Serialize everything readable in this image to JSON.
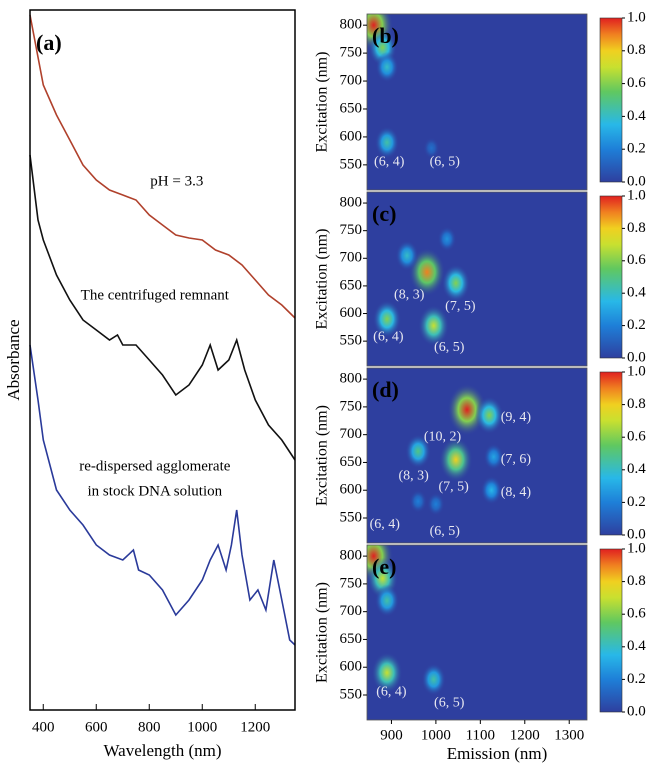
{
  "chart_data": [
    {
      "type": "line",
      "panel_label": "(a)",
      "xlabel": "Wavelength (nm)",
      "ylabel": "Absorbance",
      "xlim": [
        350,
        1350
      ],
      "xticks": [
        400,
        600,
        800,
        1000,
        1200
      ],
      "ylim": [
        0,
        700
      ],
      "series": [
        {
          "color": "#b0412c",
          "x": [
            350,
            400,
            450,
            500,
            550,
            600,
            650,
            700,
            750,
            800,
            850,
            900,
            950,
            1000,
            1050,
            1100,
            1150,
            1200,
            1250,
            1300,
            1350
          ],
          "values": [
            695,
            625,
            595,
            570,
            545,
            530,
            520,
            515,
            510,
            495,
            485,
            475,
            472,
            470,
            460,
            455,
            445,
            430,
            415,
            405,
            392
          ]
        },
        {
          "color": "#111111",
          "x": [
            350,
            380,
            400,
            450,
            500,
            550,
            600,
            650,
            680,
            700,
            750,
            800,
            850,
            900,
            950,
            1000,
            1030,
            1060,
            1100,
            1130,
            1160,
            1200,
            1250,
            1300,
            1350
          ],
          "values": [
            555,
            490,
            470,
            435,
            410,
            390,
            380,
            370,
            375,
            365,
            365,
            350,
            335,
            315,
            325,
            345,
            365,
            340,
            350,
            370,
            340,
            310,
            285,
            270,
            250
          ]
        },
        {
          "color": "#2a3a9a",
          "x": [
            350,
            380,
            400,
            450,
            500,
            550,
            600,
            650,
            700,
            740,
            760,
            800,
            850,
            900,
            950,
            1000,
            1030,
            1060,
            1090,
            1110,
            1130,
            1150,
            1180,
            1210,
            1240,
            1270,
            1300,
            1330,
            1350
          ],
          "values": [
            365,
            310,
            270,
            220,
            200,
            185,
            165,
            155,
            150,
            160,
            140,
            135,
            120,
            95,
            110,
            130,
            150,
            165,
            140,
            165,
            200,
            155,
            110,
            120,
            100,
            150,
            110,
            70,
            65
          ]
        }
      ],
      "annotations": [
        {
          "text": "pH = 3.3",
          "x": 904,
          "y": 528
        },
        {
          "text": "The centrifuged remnant",
          "x": 821,
          "y": 414
        },
        {
          "text": "re-dispersed agglomerate",
          "x": 821,
          "y": 243
        },
        {
          "text": "in stock DNA solution",
          "x": 821,
          "y": 218
        }
      ]
    },
    {
      "type": "heatmap",
      "panel_label": "(b)",
      "ylabel": "Excitation (nm)",
      "xlim": [
        845,
        1340
      ],
      "ylim": [
        505,
        820
      ],
      "yticks": [
        550,
        600,
        650,
        700,
        750,
        800
      ],
      "colorbar": {
        "lim": [
          0,
          1
        ],
        "ticks": [
          {
            "value": 0,
            "label": "0.0"
          },
          {
            "value": 0.2,
            "label": "0.2"
          },
          {
            "value": 0.4,
            "label": "0.4"
          },
          {
            "value": 0.6,
            "label": "0.6"
          },
          {
            "value": 0.8,
            "label": "0.8"
          },
          {
            "value": 1,
            "label": "1.0"
          }
        ]
      },
      "peaks": [
        {
          "x": 860,
          "y": 800,
          "z": 1.0
        },
        {
          "x": 880,
          "y": 760,
          "z": 0.6
        },
        {
          "x": 890,
          "y": 725,
          "z": 0.4
        },
        {
          "x": 890,
          "y": 590,
          "z": 0.45
        },
        {
          "x": 990,
          "y": 580,
          "z": 0.15
        }
      ],
      "annotations": [
        {
          "text": "(6, 4)",
          "x": 895,
          "y": 555
        },
        {
          "text": "(6, 5)",
          "x": 1020,
          "y": 555
        }
      ]
    },
    {
      "type": "heatmap",
      "panel_label": "(c)",
      "ylabel": "Excitation (nm)",
      "xlim": [
        845,
        1340
      ],
      "ylim": [
        505,
        820
      ],
      "yticks": [
        550,
        600,
        650,
        700,
        750,
        800
      ],
      "colorbar": {
        "lim": [
          0,
          1
        ],
        "ticks": [
          {
            "value": 0,
            "label": "0.0"
          },
          {
            "value": 0.2,
            "label": "0.2"
          },
          {
            "value": 0.4,
            "label": "0.4"
          },
          {
            "value": 0.6,
            "label": "0.6"
          },
          {
            "value": 0.8,
            "label": "0.8"
          },
          {
            "value": 1,
            "label": "1.0"
          }
        ]
      },
      "peaks": [
        {
          "x": 890,
          "y": 590,
          "z": 0.6
        },
        {
          "x": 980,
          "y": 675,
          "z": 0.9
        },
        {
          "x": 995,
          "y": 578,
          "z": 0.7
        },
        {
          "x": 1045,
          "y": 655,
          "z": 0.6
        },
        {
          "x": 935,
          "y": 705,
          "z": 0.4
        },
        {
          "x": 1025,
          "y": 735,
          "z": 0.25
        }
      ],
      "annotations": [
        {
          "text": "(8, 3)",
          "x": 940,
          "y": 633
        },
        {
          "text": "(7, 5)",
          "x": 1055,
          "y": 612
        },
        {
          "text": "(6, 4)",
          "x": 893,
          "y": 557
        },
        {
          "text": "(6, 5)",
          "x": 1030,
          "y": 538
        }
      ]
    },
    {
      "type": "heatmap",
      "panel_label": "(d)",
      "ylabel": "Excitation (nm)",
      "xlim": [
        845,
        1340
      ],
      "ylim": [
        505,
        820
      ],
      "yticks": [
        550,
        600,
        650,
        700,
        750,
        800
      ],
      "colorbar": {
        "lim": [
          0,
          1
        ],
        "ticks": [
          {
            "value": 0,
            "label": "0.0"
          },
          {
            "value": 0.2,
            "label": "0.2"
          },
          {
            "value": 0.4,
            "label": "0.4"
          },
          {
            "value": 0.6,
            "label": "0.6"
          },
          {
            "value": 0.8,
            "label": "0.8"
          },
          {
            "value": 1,
            "label": "1.0"
          }
        ]
      },
      "peaks": [
        {
          "x": 1070,
          "y": 745,
          "z": 1.0
        },
        {
          "x": 1120,
          "y": 735,
          "z": 0.6
        },
        {
          "x": 1045,
          "y": 655,
          "z": 0.8
        },
        {
          "x": 960,
          "y": 670,
          "z": 0.5
        },
        {
          "x": 1130,
          "y": 660,
          "z": 0.3
        },
        {
          "x": 1125,
          "y": 600,
          "z": 0.35
        },
        {
          "x": 960,
          "y": 580,
          "z": 0.2
        },
        {
          "x": 1000,
          "y": 575,
          "z": 0.2
        }
      ],
      "annotations": [
        {
          "text": "(9, 4)",
          "x": 1180,
          "y": 730
        },
        {
          "text": "(10, 2)",
          "x": 1015,
          "y": 695
        },
        {
          "text": "(7, 6)",
          "x": 1180,
          "y": 655
        },
        {
          "text": "(8, 3)",
          "x": 950,
          "y": 625
        },
        {
          "text": "(7, 5)",
          "x": 1040,
          "y": 605
        },
        {
          "text": "(8, 4)",
          "x": 1180,
          "y": 595
        },
        {
          "text": "(6, 4)",
          "x": 885,
          "y": 538
        },
        {
          "text": "(6, 5)",
          "x": 1020,
          "y": 525
        }
      ]
    },
    {
      "type": "heatmap",
      "panel_label": "(e)",
      "ylabel": "Excitation (nm)",
      "xlabel": "Emission (nm)",
      "xlim": [
        845,
        1340
      ],
      "ylim": [
        505,
        820
      ],
      "xticks": [
        900,
        1000,
        1100,
        1200,
        1300
      ],
      "yticks": [
        550,
        600,
        650,
        700,
        750,
        800
      ],
      "colorbar": {
        "lim": [
          0,
          1
        ],
        "ticks": [
          {
            "value": 0,
            "label": "0.0"
          },
          {
            "value": 0.2,
            "label": "0.2"
          },
          {
            "value": 0.4,
            "label": "0.4"
          },
          {
            "value": 0.6,
            "label": "0.6"
          },
          {
            "value": 0.8,
            "label": "0.8"
          },
          {
            "value": 1,
            "label": "1.0"
          }
        ]
      },
      "peaks": [
        {
          "x": 860,
          "y": 800,
          "z": 1.0
        },
        {
          "x": 880,
          "y": 760,
          "z": 0.7
        },
        {
          "x": 890,
          "y": 720,
          "z": 0.45
        },
        {
          "x": 890,
          "y": 590,
          "z": 0.7
        },
        {
          "x": 995,
          "y": 578,
          "z": 0.45
        }
      ],
      "annotations": [
        {
          "text": "(6, 4)",
          "x": 900,
          "y": 555
        },
        {
          "text": "(6, 5)",
          "x": 1030,
          "y": 535
        }
      ]
    }
  ]
}
